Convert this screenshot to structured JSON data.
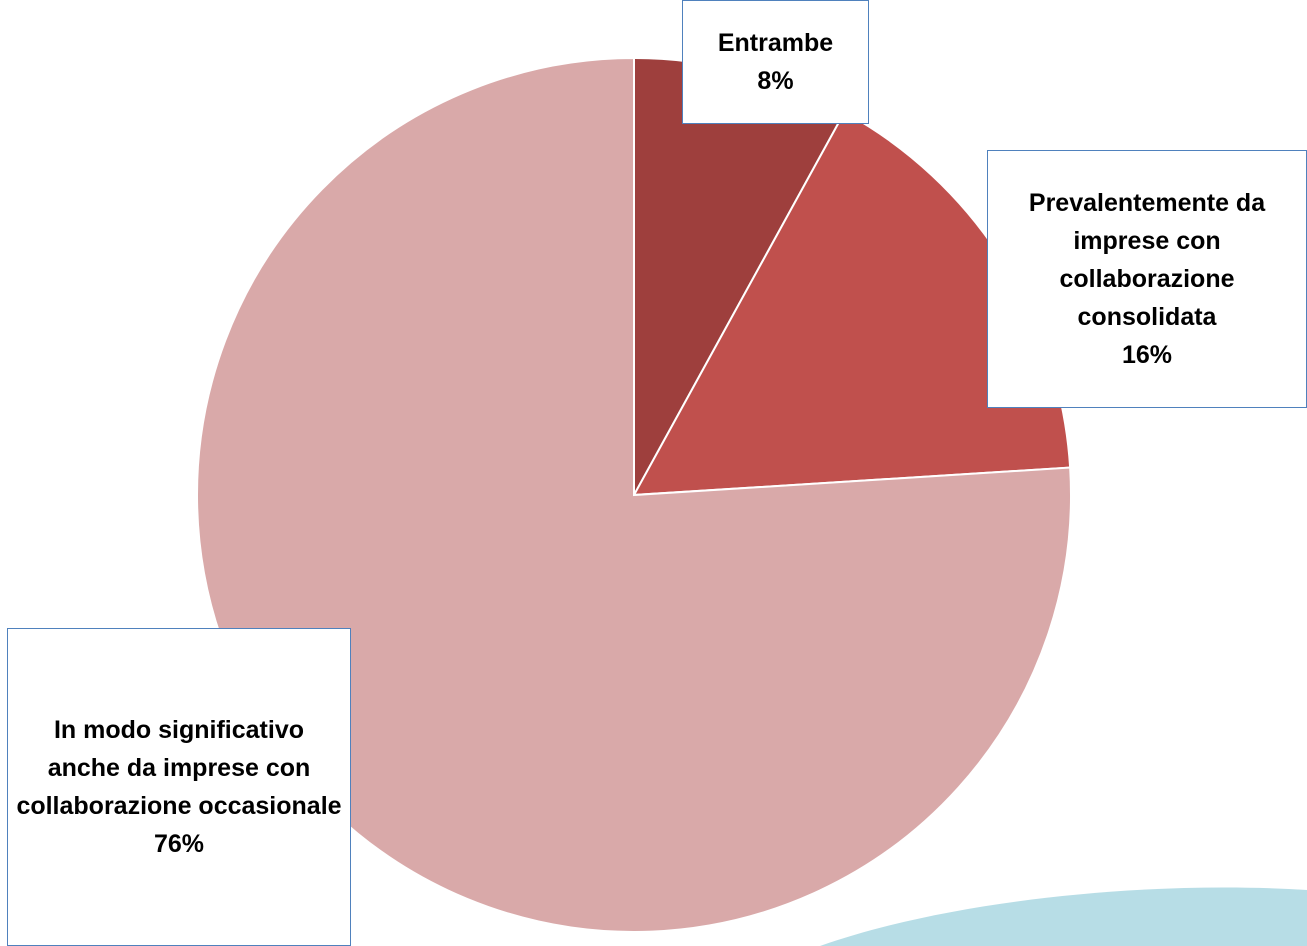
{
  "chart_data": {
    "type": "pie",
    "categories": [
      "Entrambe",
      "Prevalentemente da imprese con collaborazione consolidata",
      "In modo significativo anche da imprese con collaborazione occasionale"
    ],
    "values": [
      8,
      16,
      76
    ],
    "value_labels": [
      "8%",
      "16%",
      "76%"
    ],
    "colors": [
      "#9e3f3d",
      "#c0504d",
      "#d9a9a9"
    ]
  }
}
